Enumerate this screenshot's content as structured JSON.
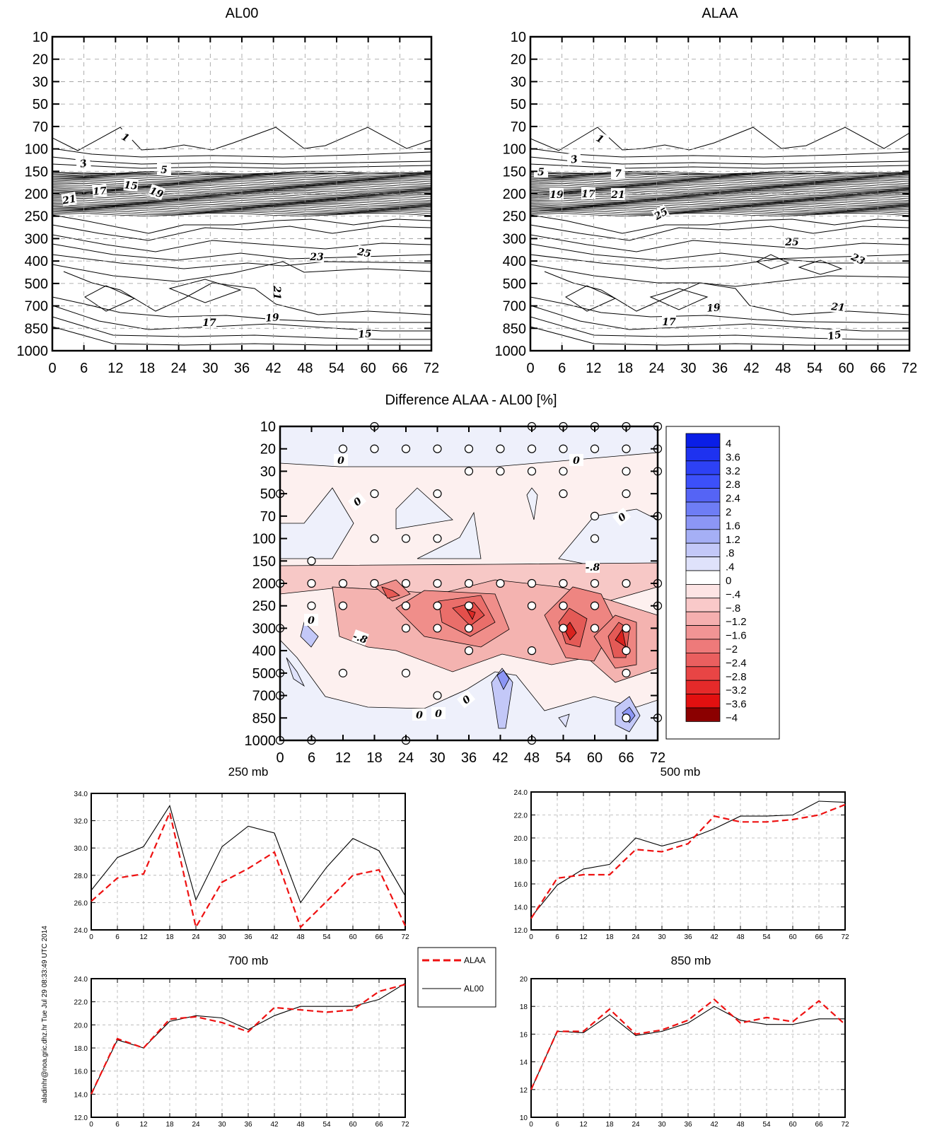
{
  "credit": "aladinhr@noa.gric.dhz.hr Tue Jul 29 08:33:49 UTC 2014",
  "colors": {
    "alaa": "#ee1111",
    "al00": "#000000"
  },
  "top_panels": [
    {
      "title": "AL00",
      "contour_labels": [
        "1",
        "3",
        "5",
        "21",
        "17",
        "15",
        "19",
        "23",
        "25",
        "21",
        "17",
        "19",
        "15"
      ]
    },
    {
      "title": "ALAA",
      "contour_labels": [
        "1",
        "3",
        "5",
        "7",
        "19",
        "17",
        "21",
        "25",
        "25",
        "23",
        "19",
        "21",
        "17",
        "15"
      ]
    }
  ],
  "diff_panel": {
    "title": "Difference ALAA - AL00 [%]",
    "contour_labels": [
      "0",
      "0",
      "0",
      "0",
      "-.8",
      "0",
      "-.8",
      "0",
      "0",
      "0"
    ],
    "colorbar": {
      "labels": [
        "4",
        "3.6",
        "3.2",
        "2.8",
        "2.4",
        "2",
        "1.6",
        "1.2",
        ".8",
        ".4",
        "0",
        "−.4",
        "−.8",
        "−1.2",
        "−1.6",
        "−2",
        "−2.4",
        "−2.8",
        "−3.2",
        "−3.6",
        "−4"
      ],
      "colors": [
        "#0a1ee6",
        "#1e32f0",
        "#2d41f5",
        "#3c50fa",
        "#5564f5",
        "#6e7df5",
        "#8c96f5",
        "#a5aff5",
        "#c3c8f8",
        "#dfe2fb",
        "#ffffff",
        "#fde4e4",
        "#f9c9c9",
        "#f5afaf",
        "#f19494",
        "#ee7a7a",
        "#ea5f5f",
        "#e84545",
        "#e52a2a",
        "#e21010",
        "#8b0000"
      ]
    }
  },
  "chart_data": [
    {
      "type": "contour",
      "title": "AL00",
      "x_ticks": [
        "0",
        "6",
        "12",
        "18",
        "24",
        "30",
        "36",
        "42",
        "48",
        "54",
        "60",
        "66",
        "72"
      ],
      "y_ticks": [
        "10",
        "20",
        "30",
        "50",
        "70",
        "100",
        "150",
        "200",
        "250",
        "300",
        "400",
        "500",
        "700",
        "850",
        "1000"
      ]
    },
    {
      "type": "contour",
      "title": "ALAA",
      "x_ticks": [
        "0",
        "6",
        "12",
        "18",
        "24",
        "30",
        "36",
        "42",
        "48",
        "54",
        "60",
        "66",
        "72"
      ],
      "y_ticks": [
        "10",
        "20",
        "30",
        "50",
        "70",
        "100",
        "150",
        "200",
        "250",
        "300",
        "400",
        "500",
        "700",
        "850",
        "1000"
      ]
    },
    {
      "type": "heatmap",
      "title": "Difference ALAA - AL00 [%]",
      "x_ticks": [
        "0",
        "6",
        "12",
        "18",
        "24",
        "30",
        "36",
        "42",
        "48",
        "54",
        "60",
        "66",
        "72"
      ],
      "y_ticks": [
        "10",
        "20",
        "30",
        "50",
        "70",
        "100",
        "150",
        "200",
        "250",
        "300",
        "400",
        "500",
        "700",
        "850",
        "1000"
      ]
    },
    {
      "type": "line",
      "title": "250 mb",
      "x": [
        0,
        6,
        12,
        18,
        24,
        30,
        36,
        42,
        48,
        54,
        60,
        66,
        72
      ],
      "x_ticks": [
        "0",
        "6",
        "12",
        "18",
        "24",
        "30",
        "36",
        "42",
        "48",
        "54",
        "60",
        "66",
        "72"
      ],
      "y_ticks": [
        "24.0",
        "26.0",
        "28.0",
        "30.0",
        "32.0",
        "34.0"
      ],
      "ylim": [
        24,
        34
      ],
      "series": [
        {
          "name": "ALAA",
          "style": "dashed",
          "values": [
            26.1,
            27.8,
            28.1,
            32.6,
            24.2,
            27.5,
            28.5,
            29.7,
            24.2,
            26.1,
            28.0,
            28.4,
            24.3
          ]
        },
        {
          "name": "AL00",
          "style": "solid",
          "values": [
            26.9,
            29.3,
            30.1,
            33.1,
            26.2,
            30.1,
            31.6,
            31.1,
            26.0,
            28.6,
            30.7,
            29.8,
            26.5
          ]
        }
      ]
    },
    {
      "type": "line",
      "title": "500 mb",
      "x": [
        0,
        6,
        12,
        18,
        24,
        30,
        36,
        42,
        48,
        54,
        60,
        66,
        72
      ],
      "x_ticks": [
        "0",
        "6",
        "12",
        "18",
        "24",
        "30",
        "36",
        "42",
        "48",
        "54",
        "60",
        "66",
        "72"
      ],
      "y_ticks": [
        "12.0",
        "14.0",
        "16.0",
        "18.0",
        "20.0",
        "22.0",
        "24.0"
      ],
      "ylim": [
        12,
        24
      ],
      "series": [
        {
          "name": "ALAA",
          "style": "dashed",
          "values": [
            13.0,
            16.5,
            16.8,
            16.8,
            19.0,
            18.8,
            19.5,
            21.9,
            21.4,
            21.4,
            21.6,
            22.0,
            22.9
          ]
        },
        {
          "name": "AL00",
          "style": "solid",
          "values": [
            13.1,
            15.9,
            17.3,
            17.7,
            20.0,
            19.3,
            19.9,
            20.8,
            21.9,
            21.9,
            22.0,
            23.2,
            23.1
          ]
        }
      ]
    },
    {
      "type": "line",
      "title": "700 mb",
      "x": [
        0,
        6,
        12,
        18,
        24,
        30,
        36,
        42,
        48,
        54,
        60,
        66,
        72
      ],
      "x_ticks": [
        "0",
        "6",
        "12",
        "18",
        "24",
        "30",
        "36",
        "42",
        "48",
        "54",
        "60",
        "66",
        "72"
      ],
      "y_ticks": [
        "12.0",
        "14.0",
        "16.0",
        "18.0",
        "20.0",
        "22.0",
        "24.0"
      ],
      "ylim": [
        12,
        24
      ],
      "series": [
        {
          "name": "ALAA",
          "style": "dashed",
          "values": [
            14.0,
            18.8,
            18.0,
            20.5,
            20.7,
            20.2,
            19.4,
            21.5,
            21.3,
            21.1,
            21.3,
            22.9,
            23.5
          ]
        },
        {
          "name": "AL00",
          "style": "solid",
          "values": [
            14.0,
            18.7,
            18.0,
            20.3,
            20.8,
            20.6,
            19.6,
            20.8,
            21.6,
            21.6,
            21.6,
            22.2,
            23.6
          ]
        }
      ]
    },
    {
      "type": "line",
      "title": "850 mb",
      "x": [
        0,
        6,
        12,
        18,
        24,
        30,
        36,
        42,
        48,
        54,
        60,
        66,
        72
      ],
      "x_ticks": [
        "0",
        "6",
        "12",
        "18",
        "24",
        "30",
        "36",
        "42",
        "48",
        "54",
        "60",
        "66",
        "72"
      ],
      "y_ticks": [
        "10",
        "12",
        "14",
        "16",
        "18",
        "20"
      ],
      "ylim": [
        10,
        20
      ],
      "series": [
        {
          "name": "ALAA",
          "style": "dashed",
          "values": [
            12.0,
            16.2,
            16.2,
            17.8,
            16.0,
            16.3,
            17.0,
            18.5,
            16.8,
            17.2,
            16.9,
            18.4,
            16.7
          ]
        },
        {
          "name": "AL00",
          "style": "solid",
          "values": [
            12.0,
            16.2,
            16.1,
            17.4,
            15.9,
            16.2,
            16.8,
            18.0,
            17.0,
            16.7,
            16.7,
            17.1,
            17.1
          ]
        }
      ]
    }
  ],
  "legend": {
    "items": [
      "ALAA",
      "AL00"
    ]
  }
}
